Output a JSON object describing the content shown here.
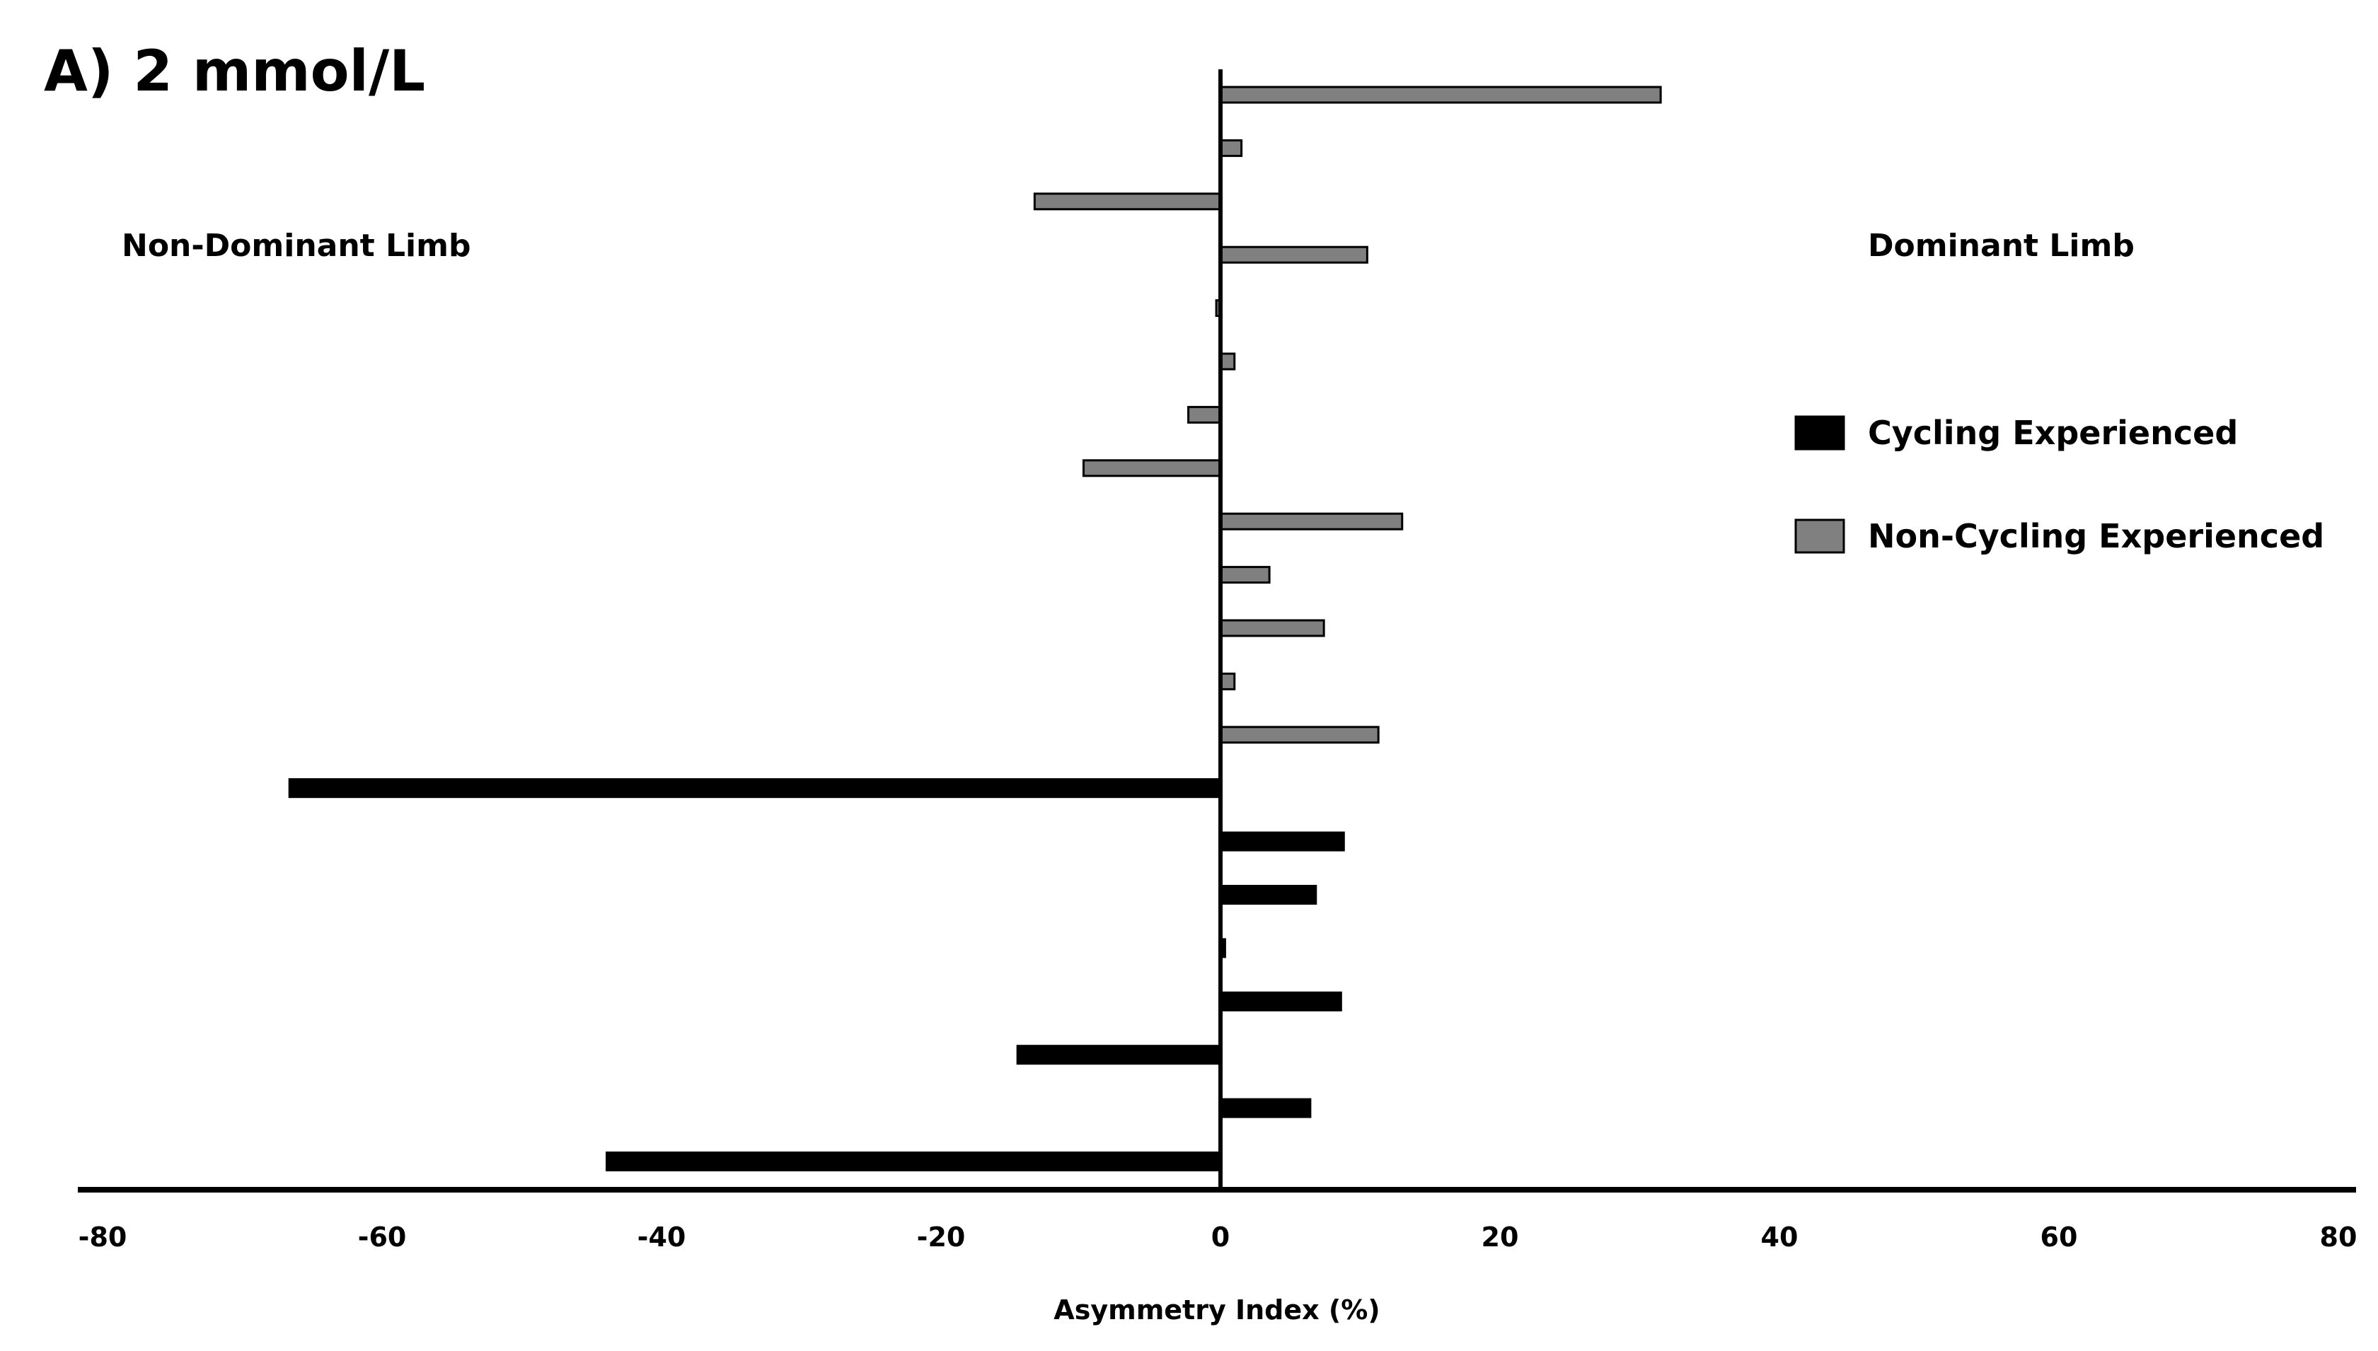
{
  "chart_data": {
    "type": "bar",
    "orientation": "horizontal",
    "title": "A) 2 mmol/L",
    "xlabel": "Asymmetry Index (%)",
    "ylabel": "",
    "xlim": [
      -80,
      80
    ],
    "xticks": [
      "-80",
      "-60",
      "-40",
      "-20",
      "0",
      "20",
      "40",
      "60",
      "80"
    ],
    "xtick_values": [
      -80,
      -60,
      -40,
      -20,
      0,
      20,
      40,
      60,
      80
    ],
    "annotations": {
      "left": "Non-Dominant  Limb",
      "right": "Dominant  Limb"
    },
    "legend_position": "right",
    "grid": false,
    "series": [
      {
        "name": "Cycling Experienced",
        "color": "#000000",
        "values": [
          -44,
          6.5,
          -14.6,
          8.7,
          0.4,
          6.9,
          8.9,
          -66.7
        ]
      },
      {
        "name": "Non-Cycling Experienced",
        "color": "#808080",
        "values": [
          11.3,
          1,
          7.4,
          3.5,
          13,
          -9.8,
          -2.3,
          1,
          -0.3,
          10.5,
          -13.3,
          1.5,
          31.5
        ]
      }
    ]
  }
}
